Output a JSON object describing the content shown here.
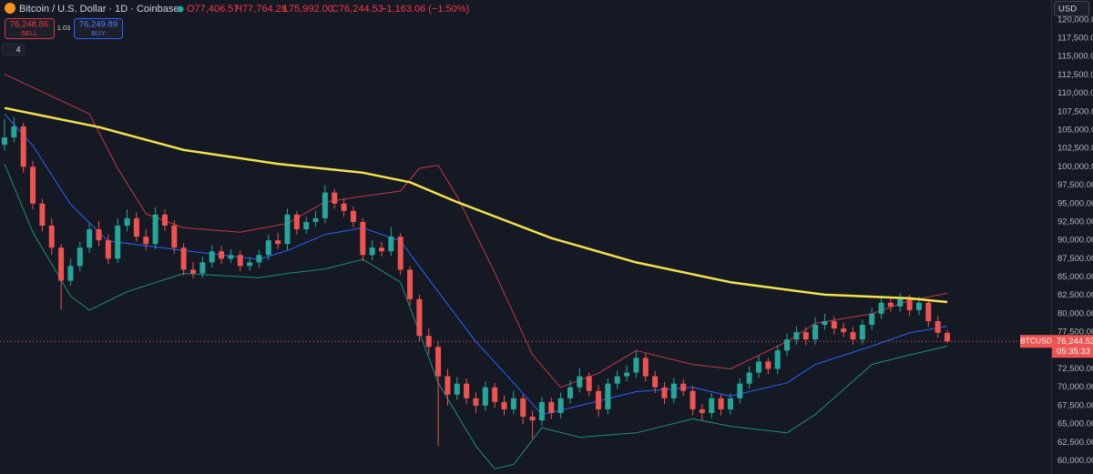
{
  "header": {
    "title": "Bitcoin / U.S. Dollar · 1D · Coinbase",
    "open": "O77,406.57",
    "high": "H77,764.28",
    "low": "L75,992.00",
    "close": "C76,244.53",
    "change": "−1,163.06 (−1.50%)",
    "sell_price": "76,248.86",
    "sell_label": "SELL",
    "spread": "1.03",
    "buy_price": "76,249.89",
    "buy_label": "BUY",
    "indicator_count": "4",
    "currency": "USD",
    "symbol": "BTCUSD",
    "last_price": "76,244.53",
    "countdown": "05:35:33"
  },
  "chart_data": {
    "type": "candlestick",
    "up_color": "#26a69a",
    "down_color": "#ef5350",
    "price_line_color": "#ef5350",
    "grid": false,
    "ylim": [
      58200,
      122700
    ],
    "yticks": [
      {
        "value": 60000,
        "label": "60,000.00"
      },
      {
        "value": 62500,
        "label": "62,500.00"
      },
      {
        "value": 65000,
        "label": "65,000.00"
      },
      {
        "value": 67500,
        "label": "67,500.00"
      },
      {
        "value": 70000,
        "label": "70,000.00"
      },
      {
        "value": 72500,
        "label": "72,500.00"
      },
      {
        "value": 75000,
        "label": "75,000.00"
      },
      {
        "value": 77500,
        "label": "77,500.00"
      },
      {
        "value": 80000,
        "label": "80,000.00"
      },
      {
        "value": 82500,
        "label": "82,500.00"
      },
      {
        "value": 85000,
        "label": "85,000.00"
      },
      {
        "value": 87500,
        "label": "87,500.00"
      },
      {
        "value": 90000,
        "label": "90,000.00"
      },
      {
        "value": 92500,
        "label": "92,500.00"
      },
      {
        "value": 95000,
        "label": "95,000.00"
      },
      {
        "value": 97500,
        "label": "97,500.00"
      },
      {
        "value": 100000,
        "label": "100,000.00"
      },
      {
        "value": 102500,
        "label": "102,500.00"
      },
      {
        "value": 105000,
        "label": "105,000.00"
      },
      {
        "value": 107500,
        "label": "107,500.00"
      },
      {
        "value": 110000,
        "label": "110,000.00"
      },
      {
        "value": 112500,
        "label": "112,500.00"
      },
      {
        "value": 115000,
        "label": "115,000.00"
      },
      {
        "value": 117500,
        "label": "117,500.00"
      },
      {
        "value": 120000,
        "label": "120,000.00"
      }
    ],
    "open": [
      103000,
      104000,
      105500,
      100000,
      95000,
      92000,
      89000,
      84500,
      86500,
      89000,
      91500,
      90000,
      87500,
      92000,
      93000,
      90500,
      89500,
      93500,
      92000,
      89000,
      86000,
      85500,
      87000,
      88500,
      87500,
      88000,
      86500,
      87000,
      88000,
      90000,
      89500,
      93500,
      91500,
      92500,
      93000,
      96500,
      95000,
      94000,
      92500,
      88000,
      89000,
      88500,
      90500,
      86000,
      82000,
      77000,
      75500,
      71500,
      69000,
      70500,
      68500,
      67500,
      70000,
      68000,
      67000,
      68500,
      66000,
      65500,
      68000,
      66500,
      68500,
      70000,
      71500,
      69500,
      67000,
      70500,
      71500,
      72000,
      74000,
      71500,
      70000,
      68500,
      70500,
      69500,
      67000,
      66500,
      68500,
      67000,
      68500,
      70500,
      72000,
      73500,
      72500,
      75000,
      76500,
      77500,
      76500,
      78500,
      79000,
      78000,
      77500,
      76500,
      78500,
      80000,
      81500,
      81000,
      82000,
      80500,
      81500,
      79000,
      77406.57
    ],
    "high": [
      106500,
      106800,
      106000,
      100800,
      95600,
      93000,
      89500,
      87500,
      89800,
      92300,
      92600,
      90800,
      93000,
      94200,
      93800,
      91500,
      94500,
      94200,
      92700,
      89600,
      87000,
      87800,
      89300,
      89200,
      88800,
      88600,
      87700,
      88700,
      90800,
      91000,
      94300,
      94000,
      93200,
      94000,
      97500,
      97000,
      95700,
      94600,
      93000,
      90000,
      89800,
      91800,
      91000,
      86500,
      82600,
      78000,
      76200,
      72500,
      71400,
      71200,
      69300,
      70800,
      70600,
      68900,
      69500,
      69000,
      66800,
      68700,
      68600,
      69300,
      71000,
      72600,
      72000,
      70300,
      71200,
      72300,
      73000,
      75000,
      74600,
      72200,
      70700,
      71300,
      71100,
      70200,
      67700,
      69200,
      69000,
      69200,
      71200,
      72800,
      74300,
      74000,
      75700,
      77300,
      78300,
      78200,
      79500,
      80000,
      79600,
      78800,
      78200,
      79200,
      80800,
      82500,
      82200,
      82800,
      82600,
      82300,
      82000,
      79700,
      77764.28
    ],
    "low": [
      102200,
      103300,
      99200,
      94200,
      91200,
      88000,
      80500,
      83800,
      85800,
      88300,
      89200,
      86800,
      86900,
      91200,
      89800,
      88700,
      88800,
      91300,
      88200,
      85200,
      84800,
      84900,
      86300,
      86800,
      86900,
      85800,
      85900,
      86300,
      87300,
      88800,
      88700,
      90800,
      90900,
      91800,
      92300,
      94300,
      93200,
      91800,
      87200,
      87300,
      87800,
      87900,
      85300,
      81200,
      76200,
      74500,
      62000,
      67500,
      68300,
      67700,
      66500,
      66800,
      67200,
      66200,
      66300,
      65000,
      63000,
      64800,
      65700,
      65800,
      67800,
      69300,
      68800,
      66000,
      66300,
      69800,
      70800,
      71300,
      70800,
      69200,
      67700,
      67800,
      68800,
      66200,
      65500,
      65800,
      66200,
      66300,
      67800,
      69800,
      71300,
      71800,
      71800,
      74300,
      75800,
      75700,
      75800,
      77800,
      77200,
      76800,
      75800,
      75800,
      77800,
      79300,
      80300,
      80300,
      79700,
      79800,
      78200,
      76700,
      75992
    ],
    "close": [
      104000,
      105500,
      100000,
      95000,
      92000,
      89000,
      84500,
      86500,
      89000,
      91500,
      90000,
      87500,
      92000,
      93000,
      90500,
      89500,
      93500,
      92000,
      89000,
      86000,
      85500,
      87000,
      88500,
      87500,
      88000,
      86500,
      87000,
      88000,
      90000,
      89500,
      93500,
      91500,
      92500,
      93000,
      96500,
      95000,
      94000,
      92500,
      88000,
      89000,
      88500,
      90500,
      86000,
      82000,
      77000,
      75500,
      71500,
      69000,
      70500,
      68500,
      67500,
      70000,
      68000,
      67000,
      68500,
      66000,
      65500,
      68000,
      66500,
      68500,
      70000,
      71500,
      69500,
      67000,
      70500,
      71500,
      72000,
      74000,
      71500,
      70000,
      68500,
      70500,
      69500,
      67000,
      66500,
      68500,
      67000,
      68500,
      70500,
      72000,
      73500,
      72500,
      75000,
      76500,
      77500,
      76500,
      78500,
      79000,
      78000,
      77500,
      76500,
      78500,
      80000,
      81500,
      81000,
      82000,
      80500,
      81500,
      79000,
      77406.57,
      76244.53
    ],
    "lines": [
      {
        "color": "#c23a44",
        "width": 1,
        "x": [
          0,
          3,
          9,
          12,
          15,
          19,
          25,
          30,
          34,
          38,
          42,
          44,
          46,
          48,
          52,
          56,
          59,
          63,
          67,
          73,
          77,
          83,
          86,
          92,
          96,
          100
        ],
        "values": [
          112600,
          110800,
          107200,
          99800,
          93600,
          91700,
          91100,
          92300,
          95200,
          96000,
          96700,
          99800,
          100200,
          96000,
          85600,
          74400,
          70000,
          71900,
          75000,
          73100,
          72500,
          76200,
          78700,
          80000,
          81800,
          82800
        ]
      },
      {
        "color": "#1e8e7e",
        "width": 1,
        "x": [
          0,
          3,
          7,
          9,
          13,
          19,
          27,
          30,
          34,
          38,
          42,
          46,
          50,
          52,
          54,
          57,
          61,
          67,
          73,
          77,
          83,
          86,
          92,
          96,
          100
        ],
        "values": [
          100400,
          91100,
          82400,
          80500,
          83000,
          85500,
          84900,
          85500,
          86100,
          87400,
          84300,
          70600,
          62000,
          58900,
          59500,
          64500,
          63200,
          63800,
          65700,
          64700,
          63800,
          66300,
          73100,
          74400,
          75600
        ]
      },
      {
        "color": "#2962ff",
        "width": 1,
        "x": [
          0,
          3,
          7,
          11,
          19,
          27,
          30,
          34,
          38,
          42,
          46,
          50,
          54,
          57,
          61,
          67,
          73,
          77,
          83,
          86,
          92,
          96,
          100
        ],
        "values": [
          107200,
          102900,
          94900,
          89900,
          88600,
          87400,
          88600,
          90800,
          91700,
          89900,
          83000,
          76200,
          70600,
          66300,
          67500,
          69400,
          70000,
          68800,
          70600,
          73100,
          75600,
          77400,
          78300
        ]
      },
      {
        "color": "#f5e14b",
        "width": 2.5,
        "x": [
          0,
          10,
          19,
          29,
          38,
          43,
          48,
          58,
          67,
          77,
          87,
          96,
          100
        ],
        "values": [
          108000,
          105400,
          102300,
          100400,
          99200,
          97900,
          95200,
          90300,
          87000,
          84300,
          82600,
          82100,
          81600
        ]
      }
    ]
  }
}
